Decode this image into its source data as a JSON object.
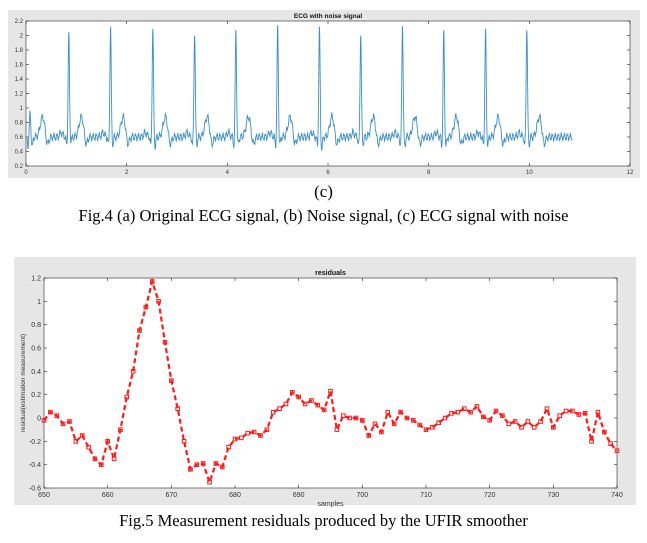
{
  "fig4": {
    "panel_label": "(c)",
    "caption": "Fig.4 (a) Original ECG signal, (b) Noise signal, (c) ECG signal with noise"
  },
  "fig5": {
    "caption": "Fig.5  Measurement residuals produced by the UFIR smoother"
  },
  "chart_data": [
    {
      "type": "line",
      "title": "ECG with noise signal",
      "xlabel": "",
      "ylabel": "",
      "xlim": [
        0,
        12
      ],
      "ylim": [
        0.2,
        2.2
      ],
      "xticks": [
        0,
        2,
        4,
        6,
        8,
        10,
        12
      ],
      "yticks": [
        0.2,
        0.4,
        0.6,
        0.8,
        1,
        1.2,
        1.4,
        1.6,
        1.8,
        2,
        2.2
      ],
      "ytick_labels": [
        "0.2",
        "0.4",
        "0.6",
        "0.8",
        "1",
        "1.2",
        "1.4",
        "1.6",
        "1.8",
        "2",
        "2.2"
      ],
      "grid": false,
      "color": "#3d8fc6",
      "x_start": 0.02,
      "x_end": 10.85,
      "baseline": 0.6,
      "beat_times": [
        0.08,
        0.85,
        1.68,
        2.52,
        3.35,
        4.17,
        5.0,
        5.83,
        6.65,
        7.48,
        8.3,
        9.13,
        9.95
      ],
      "r_peak_values": [
        0.92,
        2.02,
        2.12,
        2.1,
        2.05,
        2.07,
        2.1,
        2.1,
        2.03,
        2.15,
        2.05,
        2.07,
        2.12
      ],
      "s_trough_values": [
        0.42,
        0.5,
        0.45,
        0.42,
        0.45,
        0.45,
        0.45,
        0.38,
        0.45,
        0.42,
        0.42,
        0.45,
        0.45
      ]
    },
    {
      "type": "line",
      "title": "residuals",
      "xlabel": "samples",
      "ylabel": "residual(estimation measurement)",
      "xlim": [
        650,
        740
      ],
      "ylim": [
        -0.6,
        1.2
      ],
      "xticks": [
        650,
        660,
        670,
        680,
        690,
        700,
        710,
        720,
        730,
        740
      ],
      "yticks": [
        -0.6,
        -0.4,
        -0.2,
        0,
        0.2,
        0.4,
        0.6,
        0.8,
        1,
        1.2
      ],
      "ytick_labels": [
        "-0.6",
        "-0.4",
        "-0.2",
        "0",
        "0.2",
        "0.4",
        "0.6",
        "0.8",
        "1",
        "1.2"
      ],
      "grid": false,
      "line_style": "dashed",
      "marker": "square",
      "color": "#ff1a1a",
      "series": [
        {
          "x": [
            650,
            651,
            652,
            653,
            654,
            655,
            656,
            657,
            658,
            659,
            660,
            661,
            662,
            663,
            664,
            665,
            666,
            667,
            668,
            669,
            670,
            671,
            672,
            673,
            674,
            675,
            676,
            677,
            678,
            679,
            680,
            681,
            682,
            683,
            684,
            685,
            686,
            687,
            688,
            689,
            690,
            691,
            692,
            693,
            694,
            695,
            696,
            697,
            698,
            699,
            700,
            701,
            702,
            703,
            704,
            705,
            706,
            707,
            708,
            709,
            710,
            711,
            712,
            713,
            714,
            715,
            716,
            717,
            718,
            719,
            720,
            721,
            722,
            723,
            724,
            725,
            726,
            727,
            728,
            729,
            730,
            731,
            732,
            733,
            734,
            735,
            736,
            737,
            738,
            739,
            740
          ],
          "values": [
            -0.02,
            0.05,
            0.02,
            -0.05,
            -0.03,
            -0.2,
            -0.15,
            -0.25,
            -0.35,
            -0.4,
            -0.2,
            -0.35,
            -0.1,
            0.18,
            0.4,
            0.75,
            0.95,
            1.17,
            1.0,
            0.65,
            0.32,
            0.08,
            -0.2,
            -0.44,
            -0.4,
            -0.39,
            -0.55,
            -0.39,
            -0.42,
            -0.25,
            -0.18,
            -0.17,
            -0.13,
            -0.12,
            -0.15,
            -0.1,
            0.05,
            0.08,
            0.12,
            0.22,
            0.18,
            0.12,
            0.15,
            0.11,
            0.07,
            0.23,
            -0.1,
            0.02,
            0.0,
            0.0,
            -0.02,
            -0.15,
            -0.05,
            -0.12,
            0.05,
            -0.05,
            0.05,
            0.0,
            -0.02,
            -0.06,
            -0.1,
            -0.08,
            -0.04,
            0.0,
            0.04,
            0.05,
            0.08,
            0.05,
            0.1,
            0.01,
            -0.02,
            0.06,
            0.02,
            -0.05,
            -0.03,
            -0.08,
            -0.03,
            -0.08,
            -0.03,
            0.08,
            -0.08,
            0.02,
            0.06,
            0.06,
            0.03,
            0.04,
            -0.2,
            0.05,
            -0.12,
            -0.22,
            -0.28
          ]
        }
      ]
    }
  ]
}
